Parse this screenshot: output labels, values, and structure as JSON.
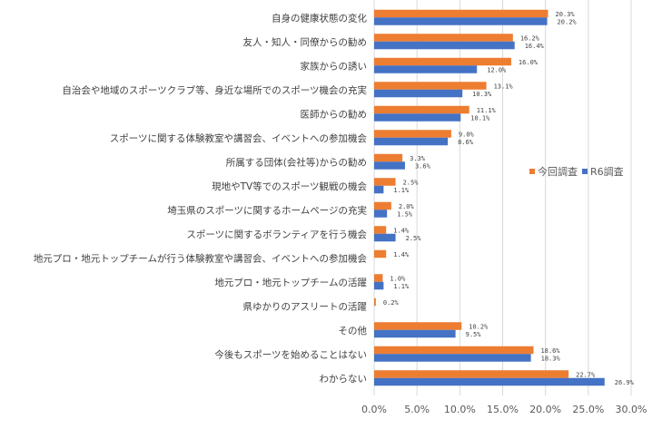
{
  "chart_data": {
    "type": "bar",
    "orientation": "horizontal",
    "categories": [
      "自身の健康状態の変化",
      "友人・知人・同僚からの勧め",
      "家族からの誘い",
      "自治会や地域のスポーツクラブ等、身近な場所でのスポーツ機会の充実",
      "医師からの勧め",
      "スポーツに関する体験教室や講習会、イベントへの参加機会",
      "所属する団体(会社等)からの勧め",
      "現地やTV等でのスポーツ観戦の機会",
      "埼玉県のスポーツに関するホームページの充実",
      "スポーツに関するボランティアを行う機会",
      "地元プロ・地元トップチームが行う体験教室や講習会、イベントへの参加機会",
      "地元プロ・地元トップチームの活躍",
      "県ゆかりのアスリートの活躍",
      "その他",
      "今後もスポーツを始めることはない",
      "わからない"
    ],
    "series": [
      {
        "name": "今回調査",
        "color": "#ED7D31",
        "values": [
          20.3,
          16.2,
          16.0,
          13.1,
          11.1,
          9.0,
          3.3,
          2.5,
          2.0,
          1.4,
          1.4,
          1.0,
          0.2,
          10.2,
          18.6,
          22.7
        ]
      },
      {
        "name": "R6調査",
        "color": "#4472C4",
        "values": [
          20.2,
          16.4,
          12.0,
          10.3,
          10.1,
          8.6,
          3.6,
          1.1,
          1.5,
          2.5,
          null,
          1.1,
          null,
          9.5,
          18.3,
          26.9
        ]
      }
    ],
    "xlim": [
      0,
      30
    ],
    "xticks": [
      "0.0%",
      "5.0%",
      "10.0%",
      "15.0%",
      "20.0%",
      "25.0%",
      "30.0%"
    ],
    "grid": true,
    "legend": "right"
  }
}
